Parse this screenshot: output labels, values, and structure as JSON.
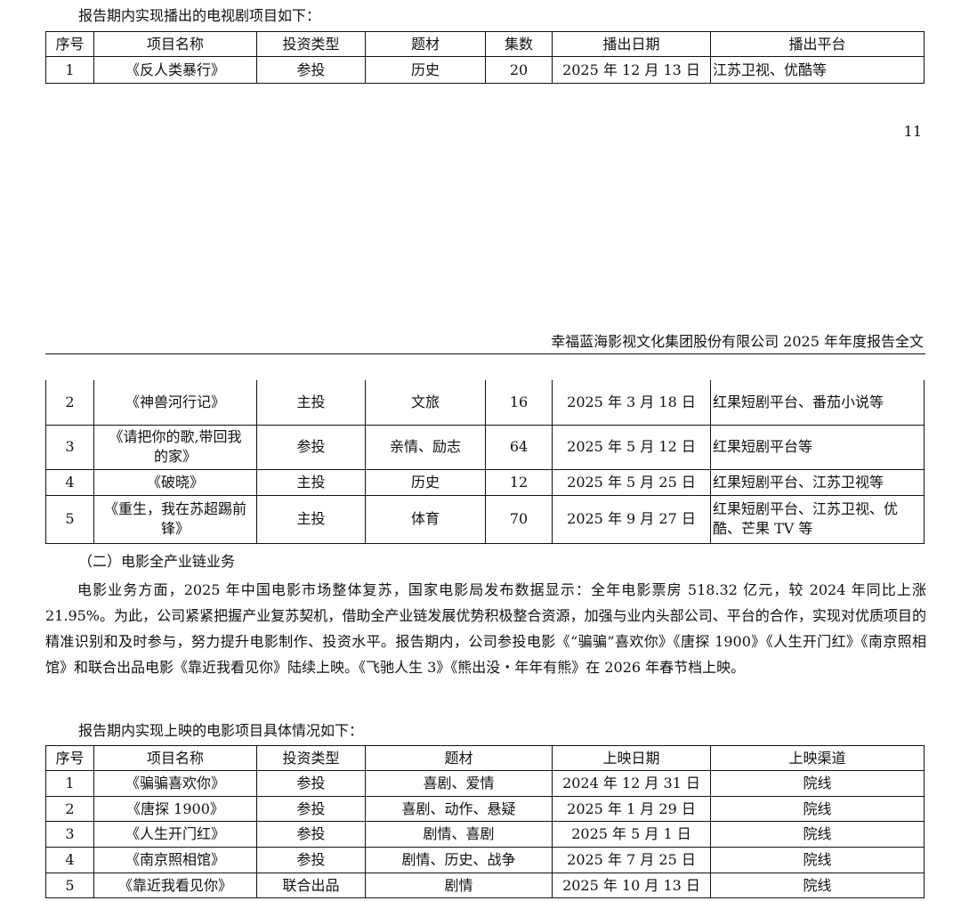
{
  "tv_intro": "报告期内实现播出的电视剧项目如下：",
  "tv_headers": [
    "序号",
    "项目名称",
    "投资类型",
    "题材",
    "集数",
    "播出日期",
    "播出平台"
  ],
  "tv_rows_page1": [
    [
      "1",
      "《反人类暴行》",
      "参投",
      "历史",
      "20",
      "2025 年 12 月 13 日",
      "江苏卫视、优酷等"
    ]
  ],
  "page_number": "11",
  "running_header": "幸福蓝海影视文化集团股份有限公司 2025 年年度报告全文",
  "tv_rows_page2": [
    [
      "2",
      "《神兽河行记》",
      "主投",
      "文旅",
      "16",
      "2025 年 3 月 18 日",
      "红果短剧平台、番茄小说等"
    ],
    [
      "3",
      "《请把你的歌,带回我的家》",
      "参投",
      "亲情、励志",
      "64",
      "2025 年 5 月 12 日",
      "红果短剧平台等"
    ],
    [
      "4",
      "《破晓》",
      "主投",
      "历史",
      "12",
      "2025 年 5 月 25 日",
      "红果短剧平台、江苏卫视等"
    ],
    [
      "5",
      "《重生，我在苏超踢前锋》",
      "主投",
      "体育",
      "70",
      "2025 年 9 月 27 日",
      "红果短剧平台、江苏卫视、优酷、芒果 TV 等"
    ]
  ],
  "section_title": "（二）电影全产业链业务",
  "paragraph": "电影业务方面，2025 年中国电影市场整体复苏，国家电影局发布数据显示：全年电影票房 518.32 亿元，较 2024 年同比上涨 21.95%。为此，公司紧紧把握产业复苏契机，借助全产业链发展优势积极整合资源，加强与业内头部公司、平台的合作，实现对优质项目的精准识别和及时参与，努力提升电影制作、投资水平。报告期内，公司参投电影《“骗骗”喜欢你》《唐探 1900》《人生开门红》《南京照相馆》和联合出品电影《靠近我看见你》陆续上映。《飞驰人生 3》《熊出没・年年有熊》在 2026 年春节档上映。",
  "film_intro": "报告期内实现上映的电影项目具体情况如下：",
  "film_headers": [
    "序号",
    "项目名称",
    "投资类型",
    "题材",
    "上映日期",
    "上映渠道"
  ],
  "film_rows": [
    [
      "1",
      "《骗骗喜欢你》",
      "参投",
      "喜剧、爱情",
      "2024 年 12 月 31 日",
      "院线"
    ],
    [
      "2",
      "《唐探 1900》",
      "参投",
      "喜剧、动作、悬疑",
      "2025 年 1 月 29 日",
      "院线"
    ],
    [
      "3",
      "《人生开门红》",
      "参投",
      "剧情、喜剧",
      "2025 年 5 月 1 日",
      "院线"
    ],
    [
      "4",
      "《南京照相馆》",
      "参投",
      "剧情、历史、战争",
      "2025 年 7 月 25 日",
      "院线"
    ],
    [
      "5",
      "《靠近我看见你》",
      "联合出品",
      "剧情",
      "2025 年 10 月 13 日",
      "院线"
    ]
  ]
}
